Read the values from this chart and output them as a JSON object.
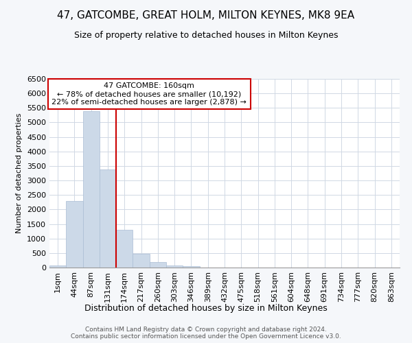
{
  "title": "47, GATCOMBE, GREAT HOLM, MILTON KEYNES, MK8 9EA",
  "subtitle": "Size of property relative to detached houses in Milton Keynes",
  "xlabel": "Distribution of detached houses by size in Milton Keynes",
  "ylabel": "Number of detached properties",
  "annotation_line1": "47 GATCOMBE: 160sqm",
  "annotation_line2": "← 78% of detached houses are smaller (10,192)",
  "annotation_line3": "22% of semi-detached houses are larger (2,878) →",
  "footer_line1": "Contains HM Land Registry data © Crown copyright and database right 2024.",
  "footer_line2": "Contains public sector information licensed under the Open Government Licence v3.0.",
  "bar_labels": [
    "1sqm",
    "44sqm",
    "87sqm",
    "131sqm",
    "174sqm",
    "217sqm",
    "260sqm",
    "303sqm",
    "346sqm",
    "389sqm",
    "432sqm",
    "475sqm",
    "518sqm",
    "561sqm",
    "604sqm",
    "648sqm",
    "691sqm",
    "734sqm",
    "777sqm",
    "820sqm",
    "863sqm"
  ],
  "bar_values": [
    70,
    2300,
    5400,
    3380,
    1300,
    480,
    185,
    80,
    50,
    5,
    2,
    1,
    0,
    0,
    0,
    0,
    0,
    0,
    0,
    0,
    0
  ],
  "bar_color": "#ccd9e8",
  "bar_edge_color": "#aabdd4",
  "vline_x": 3.5,
  "vline_color": "#cc0000",
  "ylim": [
    0,
    6500
  ],
  "yticks": [
    0,
    500,
    1000,
    1500,
    2000,
    2500,
    3000,
    3500,
    4000,
    4500,
    5000,
    5500,
    6000,
    6500
  ],
  "plot_bg_color": "#ffffff",
  "fig_bg_color": "#f5f7fa",
  "grid_color": "#d0d8e4",
  "annotation_box_color": "#ffffff",
  "annotation_box_edge": "#cc0000",
  "title_fontsize": 11,
  "subtitle_fontsize": 9,
  "xlabel_fontsize": 9,
  "ylabel_fontsize": 8,
  "tick_fontsize": 8,
  "annot_fontsize": 8,
  "footer_fontsize": 6.5
}
